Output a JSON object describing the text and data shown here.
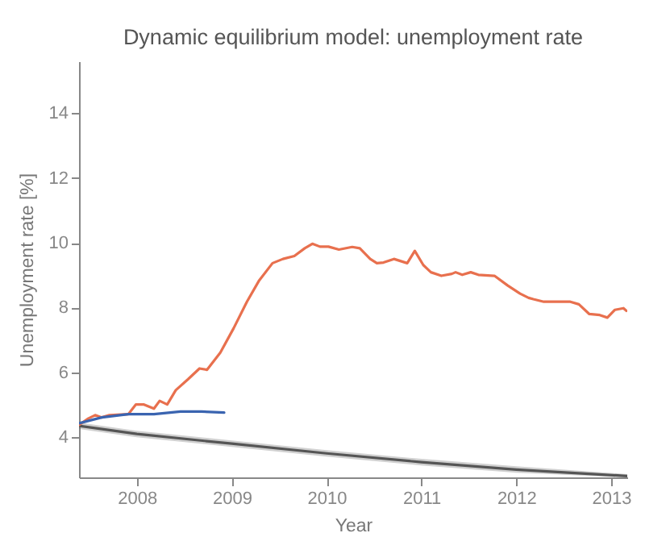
{
  "chart_data": {
    "type": "line",
    "title": "Dynamic equilibrium model: unemployment rate",
    "xlabel": "Year",
    "ylabel": "Unemployment rate [%]",
    "xlim": [
      2007.39,
      2013.17
    ],
    "ylim": [
      2.76,
      15.6
    ],
    "xticks": [
      2008,
      2009,
      2010,
      2011,
      2012,
      2013
    ],
    "yticks": [
      4,
      6,
      8,
      10,
      12,
      14
    ],
    "grid": false,
    "marker": "none",
    "line_style": "solid",
    "series": [
      {
        "color": "#555555",
        "x": [
          2007.39,
          2008,
          2009,
          2010,
          2011,
          2012,
          2013.17
        ],
        "lower": [
          4.25,
          4.0,
          3.7,
          3.4,
          3.13,
          2.9,
          2.76
        ],
        "upper": [
          4.45,
          4.2,
          3.9,
          3.6,
          3.33,
          3.1,
          2.86
        ],
        "values": [
          4.35,
          4.1,
          3.8,
          3.5,
          3.23,
          3.0,
          2.8
        ]
      },
      {
        "color": "#e8704e",
        "x": [
          2007.39,
          2007.49,
          2007.56,
          2007.63,
          2007.71,
          2007.91,
          2007.99,
          2008.07,
          2008.18,
          2008.24,
          2008.32,
          2008.41,
          2008.54,
          2008.66,
          2008.74,
          2008.88,
          2009.02,
          2009.16,
          2009.29,
          2009.43,
          2009.54,
          2009.66,
          2009.77,
          2009.85,
          2009.93,
          2010.02,
          2010.13,
          2010.27,
          2010.35,
          2010.46,
          2010.53,
          2010.6,
          2010.71,
          2010.85,
          2010.93,
          2011.02,
          2011.1,
          2011.21,
          2011.32,
          2011.36,
          2011.43,
          2011.52,
          2011.6,
          2011.77,
          2011.91,
          2012.04,
          2012.13,
          2012.18,
          2012.29,
          2012.57,
          2012.66,
          2012.77,
          2012.88,
          2012.96,
          2013.04,
          2013.13,
          2013.16
        ],
        "values": [
          4.38,
          4.58,
          4.68,
          4.61,
          4.68,
          4.71,
          5.01,
          5.01,
          4.88,
          5.12,
          5.01,
          5.45,
          5.79,
          6.12,
          6.08,
          6.61,
          7.36,
          8.18,
          8.84,
          9.37,
          9.5,
          9.59,
          9.83,
          9.97,
          9.88,
          9.88,
          9.79,
          9.87,
          9.83,
          9.5,
          9.37,
          9.39,
          9.5,
          9.37,
          9.75,
          9.31,
          9.09,
          8.98,
          9.04,
          9.09,
          9.01,
          9.09,
          9.01,
          8.98,
          8.68,
          8.43,
          8.3,
          8.26,
          8.18,
          8.18,
          8.1,
          7.8,
          7.77,
          7.69,
          7.93,
          7.98,
          7.9
        ]
      },
      {
        "color": "#3a64b0",
        "x": [
          2007.39,
          2007.63,
          2007.91,
          2008.18,
          2008.46,
          2008.68,
          2008.92
        ],
        "values": [
          4.43,
          4.61,
          4.71,
          4.71,
          4.79,
          4.79,
          4.76
        ]
      }
    ]
  }
}
